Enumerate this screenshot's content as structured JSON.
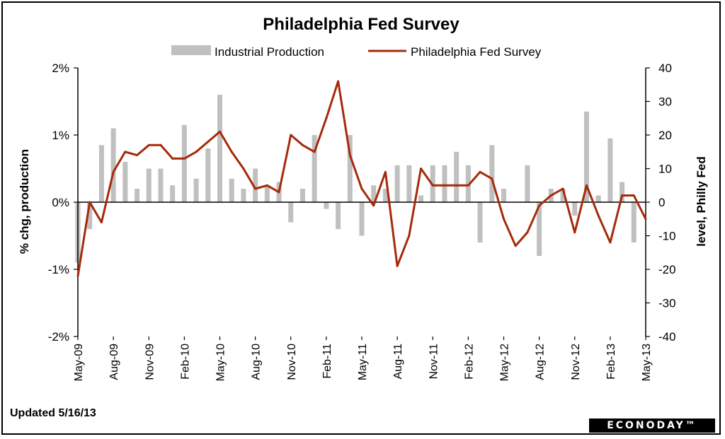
{
  "chart_data": {
    "type": "bar+line",
    "title": "Philadelphia Fed Survey",
    "legend": {
      "placement": "top",
      "items": [
        "Industrial Production",
        "Philadelphia Fed Survey"
      ]
    },
    "ylabel_left": "% chg, production",
    "ylabel_right": "level, Philly Fed",
    "ylim_left": [
      -2,
      2
    ],
    "ylim_right": [
      -40,
      40
    ],
    "yticks_left": [
      "2%",
      "1%",
      "0%",
      "-1%",
      "-2%"
    ],
    "yticks_right": [
      "40",
      "30",
      "20",
      "10",
      "0",
      "-10",
      "-20",
      "-30",
      "-40"
    ],
    "x_tick_labels": [
      "May-09",
      "Aug-09",
      "Nov-09",
      "Feb-10",
      "May-10",
      "Aug-10",
      "Nov-10",
      "Feb-11",
      "May-11",
      "Aug-11",
      "Nov-11",
      "Feb-12",
      "May-12",
      "Aug-12",
      "Nov-12",
      "Feb-13",
      "May-13"
    ],
    "x": [
      "2009-05",
      "2009-06",
      "2009-07",
      "2009-08",
      "2009-09",
      "2009-10",
      "2009-11",
      "2009-12",
      "2010-01",
      "2010-02",
      "2010-03",
      "2010-04",
      "2010-05",
      "2010-06",
      "2010-07",
      "2010-08",
      "2010-09",
      "2010-10",
      "2010-11",
      "2010-12",
      "2011-01",
      "2011-02",
      "2011-03",
      "2011-04",
      "2011-05",
      "2011-06",
      "2011-07",
      "2011-08",
      "2011-09",
      "2011-10",
      "2011-11",
      "2011-12",
      "2012-01",
      "2012-02",
      "2012-03",
      "2012-04",
      "2012-05",
      "2012-06",
      "2012-07",
      "2012-08",
      "2012-09",
      "2012-10",
      "2012-11",
      "2012-12",
      "2013-01",
      "2013-02",
      "2013-03",
      "2013-04",
      "2013-05"
    ],
    "series": [
      {
        "name": "Industrial Production",
        "type": "bar",
        "axis": "left",
        "color": "#c0c0c0",
        "values": [
          -0.9,
          -0.4,
          0.85,
          1.1,
          0.6,
          0.2,
          0.5,
          0.5,
          0.25,
          1.15,
          0.35,
          0.8,
          1.6,
          0.35,
          0.2,
          0.5,
          0.25,
          0.3,
          -0.3,
          0.2,
          1.0,
          -0.1,
          -0.4,
          1.0,
          -0.5,
          0.25,
          0.2,
          0.55,
          0.55,
          0.1,
          0.55,
          0.55,
          0.75,
          0.55,
          -0.6,
          0.85,
          0.2,
          0.0,
          0.55,
          -0.8,
          0.2,
          0.2,
          -0.2,
          1.35,
          0.1,
          0.95,
          0.3,
          -0.6,
          0.0
        ]
      },
      {
        "name": "Philadelphia Fed Survey",
        "type": "line",
        "axis": "right",
        "color": "#a52a0a",
        "values": [
          -22,
          0,
          -6,
          9,
          15,
          14,
          17,
          17,
          13,
          13,
          15,
          18,
          21,
          15,
          10,
          4,
          5,
          3,
          20,
          17,
          15,
          25,
          36,
          14,
          4,
          -1,
          9,
          -19,
          -10,
          10,
          5,
          5,
          5,
          5,
          9,
          7,
          -5,
          -13,
          -9,
          -1,
          2,
          4,
          -9,
          5,
          -4,
          -12,
          2,
          2,
          -5
        ]
      }
    ]
  },
  "footer": {
    "updated": "Updated 5/16/13",
    "brand": "ECONODAY™"
  }
}
